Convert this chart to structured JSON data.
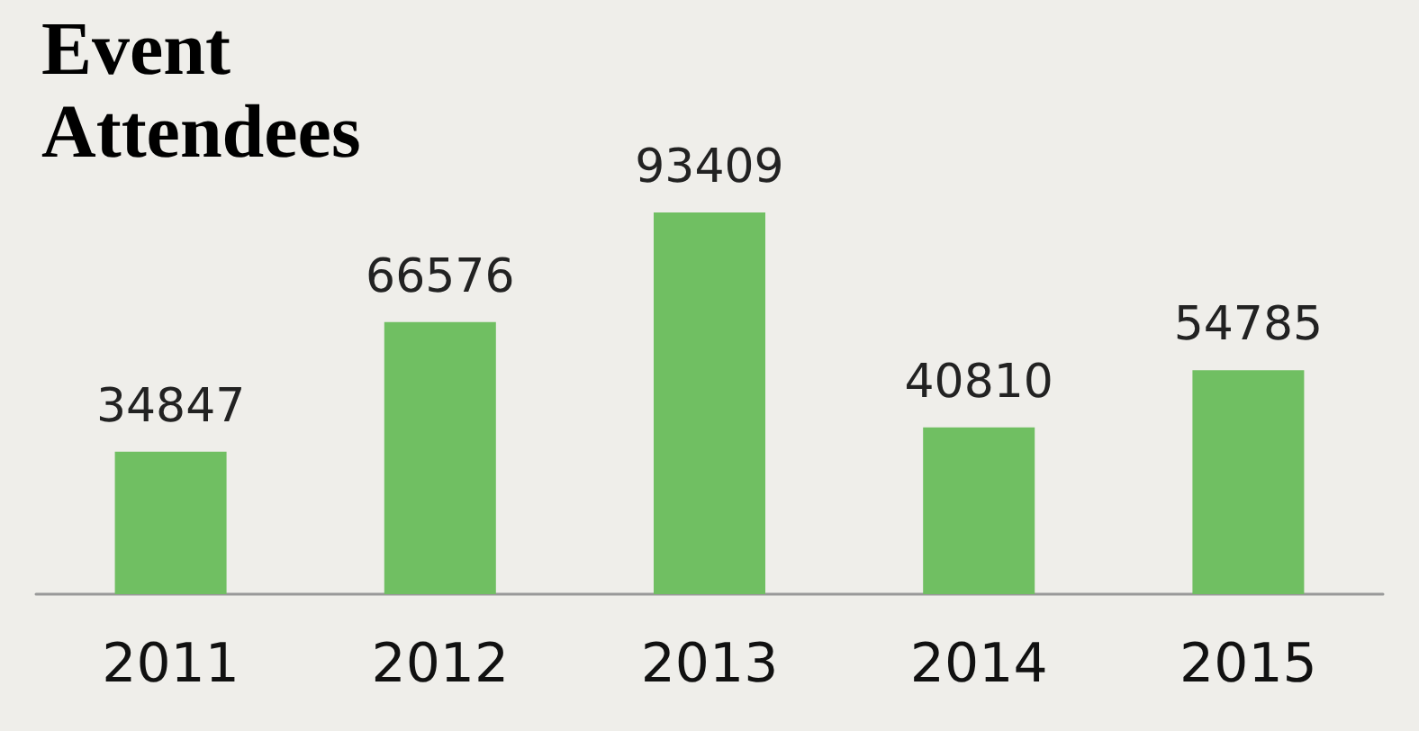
{
  "chart_data": {
    "type": "bar",
    "title": "Event Attendees",
    "categories": [
      "2011",
      "2012",
      "2013",
      "2014",
      "2015"
    ],
    "values": [
      34847,
      66576,
      93409,
      40810,
      54785
    ],
    "color": "#70bf62",
    "data_labels": true
  }
}
